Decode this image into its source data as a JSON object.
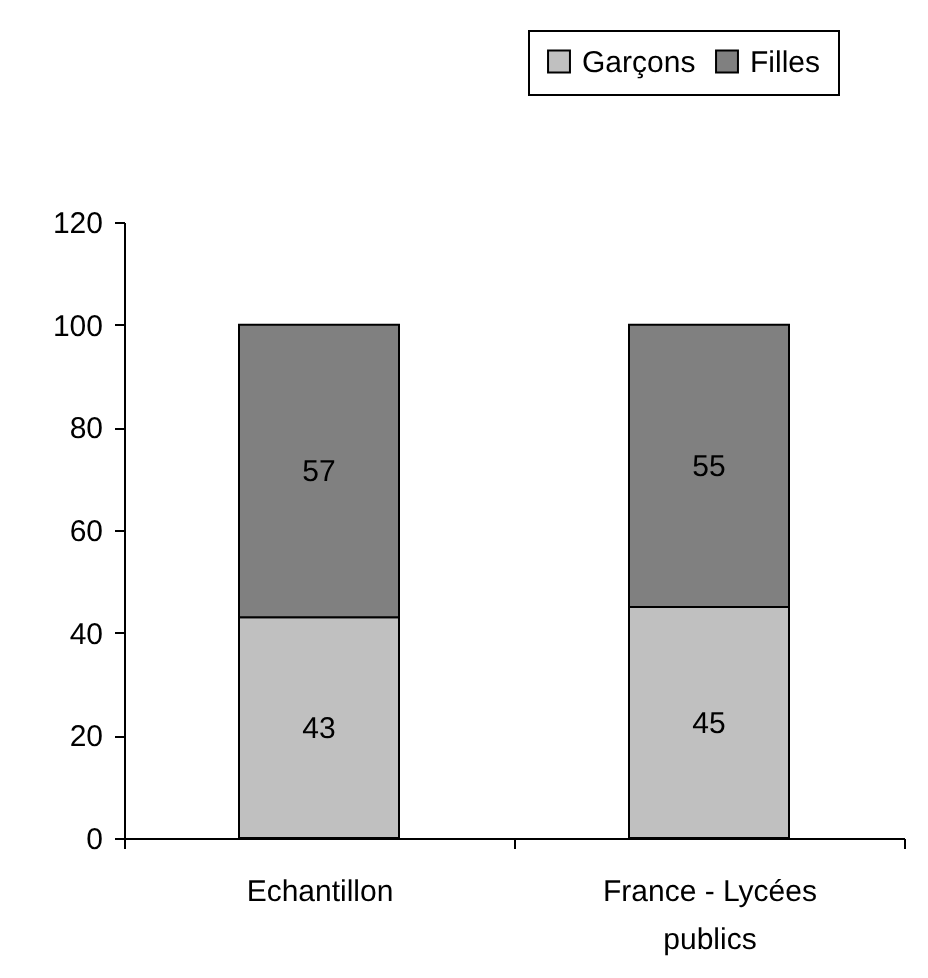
{
  "chart_data": {
    "type": "bar",
    "stacked": true,
    "categories": [
      "Echantillon",
      "France - Lycées publics"
    ],
    "series": [
      {
        "name": "Garçons",
        "color": "#c0c0c0",
        "values": [
          43,
          45
        ]
      },
      {
        "name": "Filles",
        "color": "#808080",
        "values": [
          57,
          55
        ]
      }
    ],
    "ylim": [
      0,
      120
    ],
    "yticks": [
      0,
      20,
      40,
      60,
      80,
      100,
      120
    ],
    "grid": false,
    "legend": "top right",
    "data_labels": true
  }
}
